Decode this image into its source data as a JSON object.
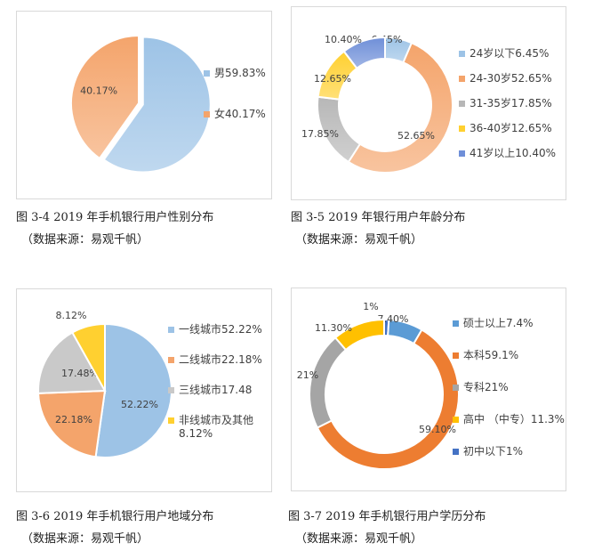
{
  "chart_data": [
    {
      "type": "pie",
      "caption": "图 3-4  2019 年手机银行用户性别分布",
      "source": "（数据来源：易观千帆）",
      "slices": [
        {
          "label": "男",
          "value": 59.83,
          "data_label": "",
          "legend": "男59.83%",
          "color": "#9dc3e6"
        },
        {
          "label": "女",
          "value": 40.17,
          "data_label": "40.17%",
          "legend": "女40.17%",
          "color": "#f4a46b"
        }
      ]
    },
    {
      "type": "donut",
      "caption": "图 3-5  2019 年银行用户年龄分布",
      "source": "（数据来源：易观千帆）",
      "slices": [
        {
          "label": "24岁以下",
          "value": 6.45,
          "data_label": "6.45%",
          "legend": "24岁以下6.45%",
          "color": "#9dc3e6"
        },
        {
          "label": "24-30岁",
          "value": 52.65,
          "data_label": "52.65%",
          "legend": "24-30岁52.65%",
          "color": "#f4a46b"
        },
        {
          "label": "31-35岁",
          "value": 17.85,
          "data_label": "17.85%",
          "legend": "31-35岁17.85%",
          "color": "#b7b7b7"
        },
        {
          "label": "36-40岁",
          "value": 12.65,
          "data_label": "12.65%",
          "legend": "36-40岁12.65%",
          "color": "#ffd030"
        },
        {
          "label": "41岁以上",
          "value": 10.4,
          "data_label": "10.40%",
          "legend": "41岁以上10.40%",
          "color": "#6f8fd8"
        }
      ]
    },
    {
      "type": "pie",
      "caption": "图 3-6  2019 年手机银行用户地域分布",
      "source": "（数据来源：易观千帆）",
      "slices": [
        {
          "label": "一线城市",
          "value": 52.22,
          "data_label": "52.22%",
          "legend": "一线城市52.22%",
          "color": "#9dc3e6"
        },
        {
          "label": "二线城市",
          "value": 22.18,
          "data_label": "22.18%",
          "legend": "二线城市22.18%",
          "color": "#f4a46b"
        },
        {
          "label": "三线城市",
          "value": 17.48,
          "data_label": "17.48%",
          "legend": "三线城市17.48",
          "color": "#c9c9c9"
        },
        {
          "label": "非线城市及其他",
          "value": 8.12,
          "data_label": "8.12%",
          "legend": "非线城市及其他",
          "legend2": "8.12%",
          "color": "#ffd030"
        }
      ]
    },
    {
      "type": "donut",
      "caption": "图 3-7  2019 年手机银行用户学历分布",
      "source": "（数据来源：易观千帆）",
      "slices": [
        {
          "label": "初中以下",
          "value": 1,
          "data_label": "1%",
          "legend": "初中以下1%",
          "color": "#4472c4"
        },
        {
          "label": "硕士以上",
          "value": 7.4,
          "data_label": "7.40%",
          "legend": "硕士以上7.4%",
          "color": "#5b9bd5"
        },
        {
          "label": "本科",
          "value": 59.1,
          "data_label": "59.10%",
          "legend": "本科59.1%",
          "color": "#ed7d31"
        },
        {
          "label": "专科",
          "value": 21,
          "data_label": "21%",
          "legend": "专科21%",
          "color": "#a5a5a5"
        },
        {
          "label": "高中（中专）",
          "value": 11.3,
          "data_label": "11.30%",
          "legend": "高中 （中专）11.3%",
          "color": "#ffc000"
        }
      ],
      "legend_order": [
        1,
        2,
        3,
        4,
        0
      ]
    }
  ]
}
